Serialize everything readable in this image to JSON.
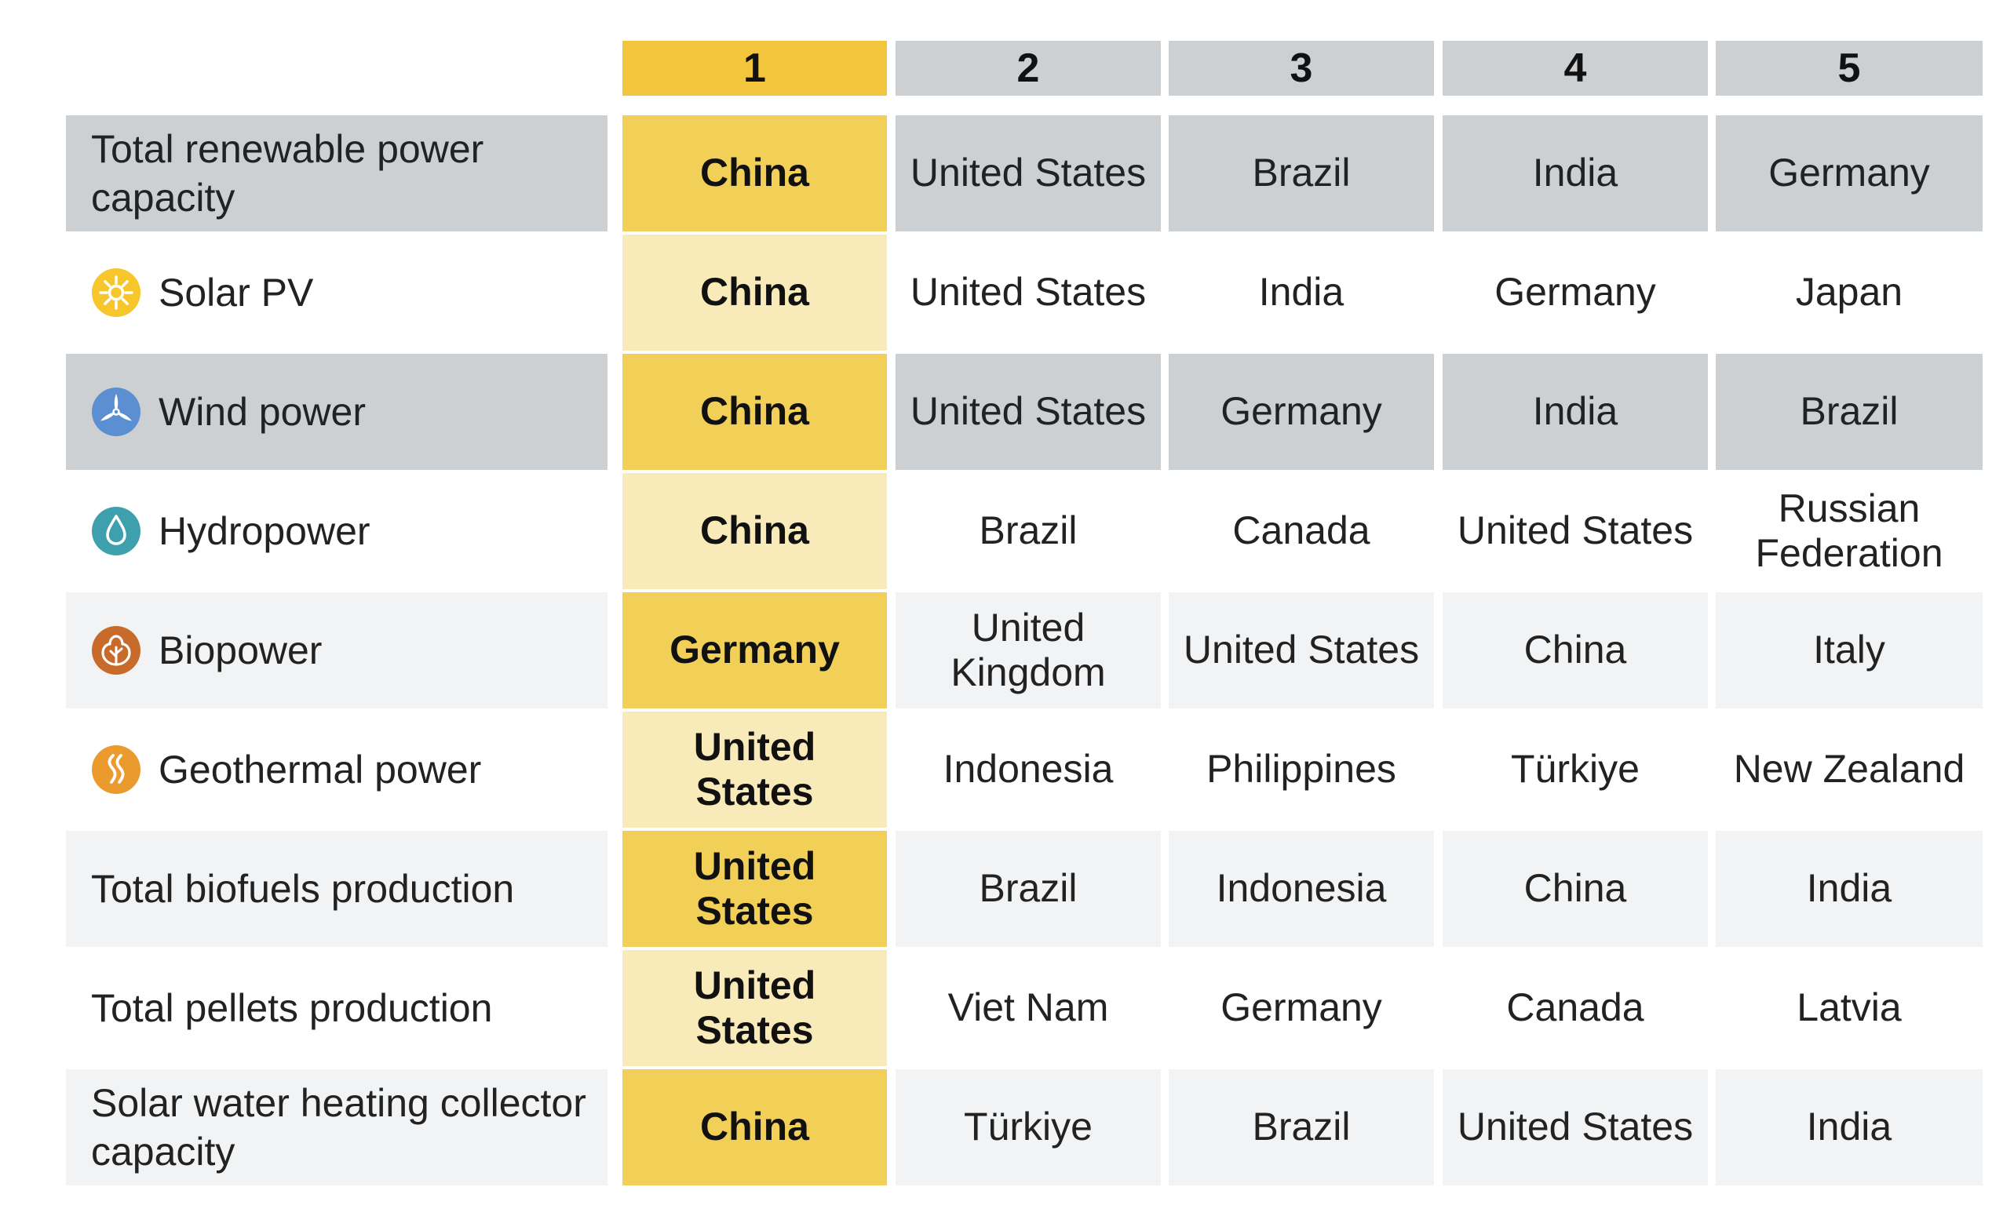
{
  "chart_data": {
    "type": "table",
    "columns": [
      "1",
      "2",
      "3",
      "4",
      "5"
    ],
    "rows": [
      {
        "label": "Total renewable power capacity",
        "icon": "",
        "values": [
          "China",
          "United States",
          "Brazil",
          "India",
          "Germany"
        ]
      },
      {
        "label": "Solar PV",
        "icon": "sun-icon",
        "values": [
          "China",
          "United States",
          "India",
          "Germany",
          "Japan"
        ]
      },
      {
        "label": "Wind power",
        "icon": "wind-turbine-icon",
        "values": [
          "China",
          "United States",
          "Germany",
          "India",
          "Brazil"
        ]
      },
      {
        "label": "Hydropower",
        "icon": "water-drop-icon",
        "values": [
          "China",
          "Brazil",
          "Canada",
          "United States",
          "Russian Federation"
        ]
      },
      {
        "label": "Biopower",
        "icon": "leaf-icon",
        "values": [
          "Germany",
          "United Kingdom",
          "United States",
          "China",
          "Italy"
        ]
      },
      {
        "label": "Geothermal power",
        "icon": "heat-waves-icon",
        "values": [
          "United States",
          "Indonesia",
          "Philippines",
          "Türkiye",
          "New Zealand"
        ]
      },
      {
        "label": "Total biofuels production",
        "icon": "",
        "values": [
          "United States",
          "Brazil",
          "Indonesia",
          "China",
          "India"
        ]
      },
      {
        "label": "Total pellets production",
        "icon": "",
        "values": [
          "United States",
          "Viet Nam",
          "Germany",
          "Canada",
          "Latvia"
        ]
      },
      {
        "label": "Solar water heating collector capacity",
        "icon": "",
        "values": [
          "China",
          "Türkiye",
          "Brazil",
          "United States",
          "India"
        ]
      }
    ]
  },
  "colors": {
    "header_gold": "#f2c53c",
    "header_gray": "#cdd0d3",
    "row_gray": "#cdd0d3",
    "row_light": "#f2f3f4",
    "first_col_gold": "#f2d058",
    "first_col_pale": "#f9ebb9",
    "solar_icon": "#f7c62b",
    "wind_icon": "#5b8fd1",
    "hydro_icon": "#3ea0ad",
    "bio_icon": "#c86a2a",
    "geothermal_icon": "#eb9a2e"
  }
}
